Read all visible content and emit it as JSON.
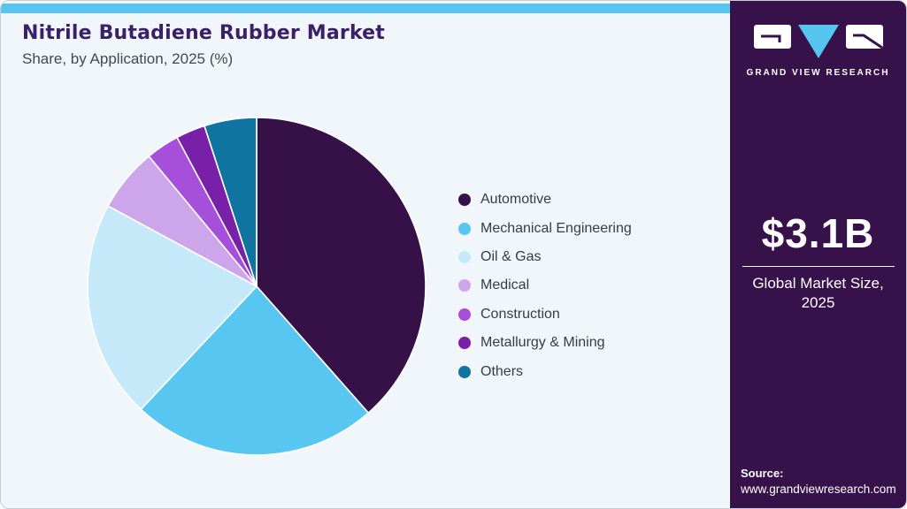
{
  "header": {
    "title": "Nitrile Butadiene Rubber Market",
    "subtitle": "Share, by Application, 2025 (%)"
  },
  "chart_data": {
    "type": "pie",
    "title": "Nitrile Butadiene Rubber Market Share, by Application, 2025 (%)",
    "unit": "%",
    "categories": [
      "Automotive",
      "Mechanical Engineering",
      "Oil & Gas",
      "Medical",
      "Construction",
      "Metallurgy & Mining",
      "Others"
    ],
    "values": [
      38.5,
      23.5,
      20.9,
      6.1,
      3.2,
      2.8,
      5.0
    ],
    "colors": [
      "#361148",
      "#57c7f2",
      "#c5e9f9",
      "#cda5eb",
      "#a64fdb",
      "#7821a8",
      "#0f75a0"
    ],
    "start_angle_deg": 0,
    "direction": "clockwise",
    "legend_position": "right",
    "slice_separator_color": "#ffffff"
  },
  "sidebar": {
    "logo_text": "GRAND VIEW RESEARCH",
    "market_size": "$3.1B",
    "market_size_label": "Global Market Size, 2025",
    "source_label": "Source:",
    "source_url": "www.grandviewresearch.com"
  },
  "colors": {
    "accent_blue": "#56c5f0",
    "sidebar_purple": "#371149",
    "card_background": "#f1f6fa",
    "title_purple": "#3a2066"
  }
}
